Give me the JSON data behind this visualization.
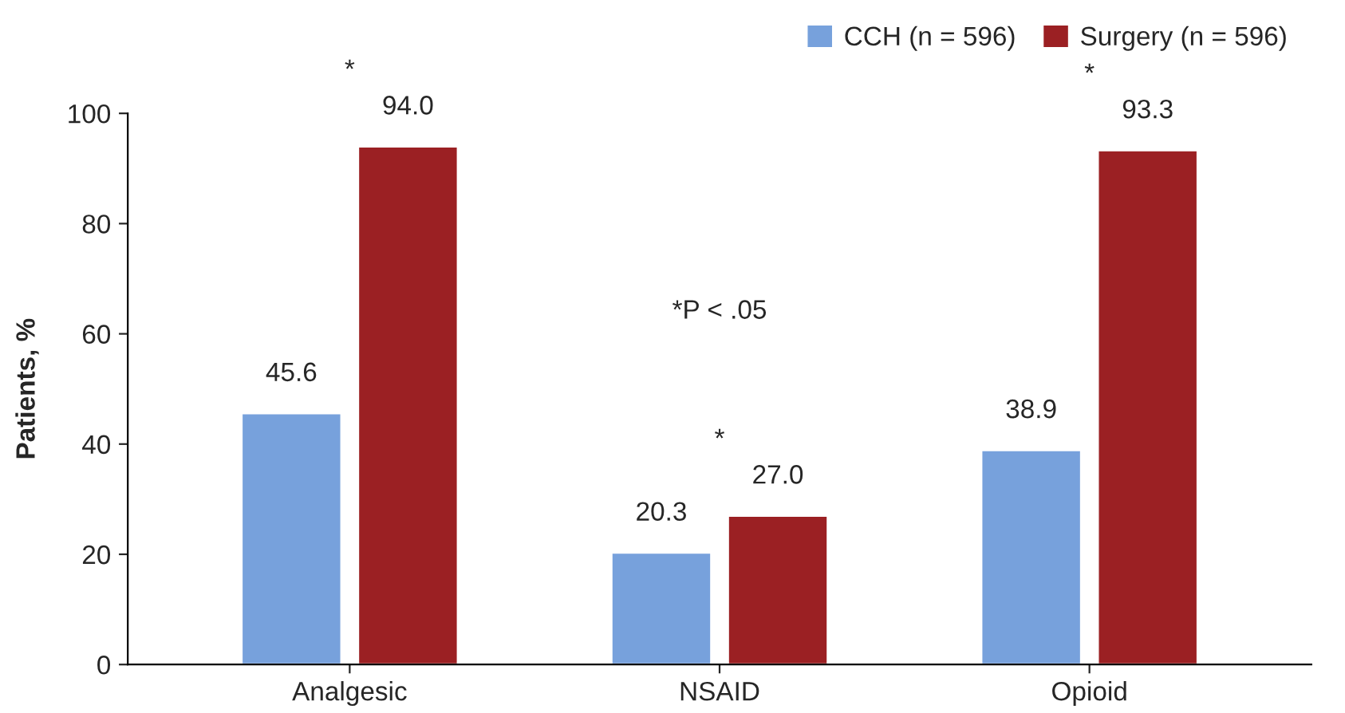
{
  "chart_data": {
    "type": "bar",
    "ylabel": "Patients, %",
    "categories": [
      "Analgesic",
      "NSAID",
      "Opioid"
    ],
    "series": [
      {
        "name": "CCH (n = 596)",
        "color": "#77a1dc",
        "values": [
          45.6,
          20.3,
          38.9
        ],
        "value_labels": [
          "45.6",
          "20.3",
          "38.9"
        ]
      },
      {
        "name": "Surgery (n = 596)",
        "color": "#9b2023",
        "values": [
          94.0,
          27.0,
          93.3
        ],
        "value_labels": [
          "94.0",
          "27.0",
          "93.3"
        ]
      }
    ],
    "ylim": [
      0,
      100
    ],
    "yticks": [
      0,
      20,
      40,
      60,
      80,
      100
    ],
    "grid": false,
    "legend": "top right",
    "annotations": [
      "*",
      "*",
      "*",
      "*P < .05"
    ]
  }
}
